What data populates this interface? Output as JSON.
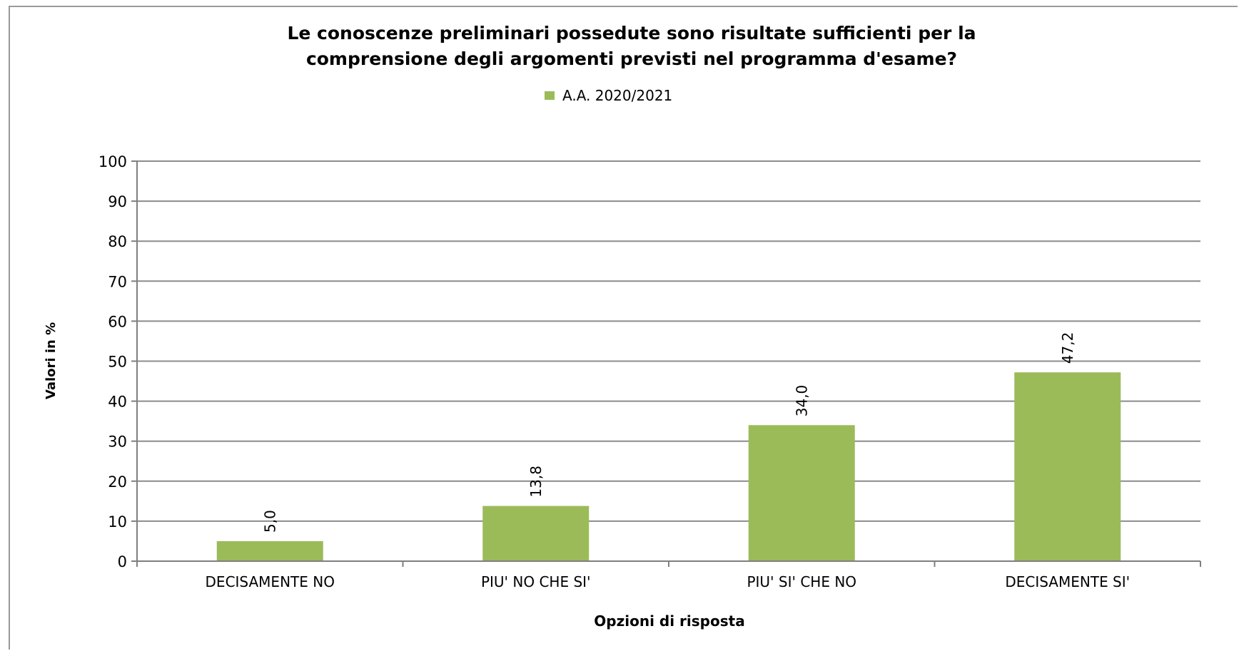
{
  "chart_data": {
    "type": "bar",
    "title_lines": [
      "Le conoscenze preliminari possedute sono risultate sufficienti per la",
      "comprensione degli argomenti previsti nel programma d'esame?"
    ],
    "legend": "A.A. 2020/2021",
    "legend_placement": "top-center",
    "categories": [
      "DECISAMENTE NO",
      "PIU' NO CHE SI'",
      "PIU' SI' CHE NO",
      "DECISAMENTE SI'"
    ],
    "series": [
      {
        "name": "A.A. 2020/2021",
        "values": [
          5.0,
          13.8,
          34.0,
          47.2
        ],
        "labels": [
          "5,0",
          "13,8",
          "34,0",
          "47,2"
        ]
      }
    ],
    "xlabel": "Opzioni di risposta",
    "ylabel": "Valori in %",
    "ylim": [
      0,
      100
    ],
    "yticks": [
      0,
      10,
      20,
      30,
      40,
      50,
      60,
      70,
      80,
      90,
      100
    ],
    "grid": true,
    "colors": {
      "bar": "#9bbb59",
      "grid": "#8c8c8c",
      "axis": "#7f7f7f",
      "text": "#000000"
    }
  }
}
